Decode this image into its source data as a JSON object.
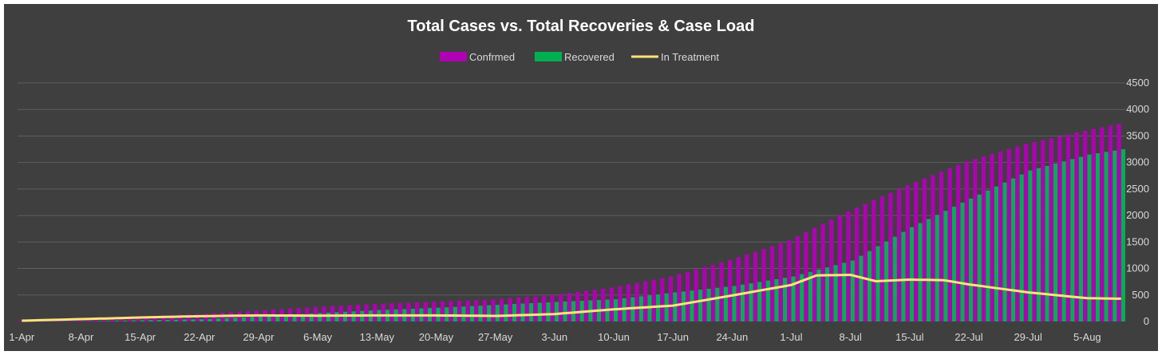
{
  "chart_data": {
    "type": "bar",
    "title": "Total Cases vs. Total Recoveries & Case Load",
    "legend_position": "top",
    "grid": true,
    "ylim": [
      0,
      4500
    ],
    "y_ticks": [
      0,
      500,
      1000,
      1500,
      2000,
      2500,
      3000,
      3500,
      4000,
      4500
    ],
    "x_tick_labels": [
      "1-Apr",
      "8-Apr",
      "15-Apr",
      "22-Apr",
      "29-Apr",
      "6-May",
      "13-May",
      "20-May",
      "27-May",
      "3-Jun",
      "10-Jun",
      "17-Jun",
      "24-Jun",
      "1-Jul",
      "8-Jul",
      "15-Jul",
      "22-Jul",
      "29-Jul",
      "5-Aug"
    ],
    "x_start_label": "1-Apr",
    "day_count": 131,
    "colors": {
      "background": "#3f3f3f",
      "grid": "#5e5e5e",
      "text": "#d9d9d9",
      "title": "#ffffff",
      "confirmed": "#b000b5",
      "recovered": "#00b050",
      "in_treatment": "#ffe37a"
    },
    "legend": [
      "Confrmed",
      "Recovered",
      "In Treatment"
    ],
    "series": [
      {
        "name": "Confrmed",
        "kind": "bar",
        "keypoints": [
          [
            0,
            15
          ],
          [
            7,
            50
          ],
          [
            14,
            95
          ],
          [
            21,
            140
          ],
          [
            28,
            205
          ],
          [
            35,
            275
          ],
          [
            42,
            330
          ],
          [
            49,
            375
          ],
          [
            56,
            415
          ],
          [
            63,
            500
          ],
          [
            70,
            640
          ],
          [
            77,
            850
          ],
          [
            84,
            1160
          ],
          [
            91,
            1530
          ],
          [
            98,
            2080
          ],
          [
            105,
            2570
          ],
          [
            112,
            3020
          ],
          [
            119,
            3350
          ],
          [
            126,
            3600
          ],
          [
            130,
            3730
          ]
        ]
      },
      {
        "name": "Recovered",
        "kind": "bar",
        "keypoints": [
          [
            0,
            0
          ],
          [
            7,
            5
          ],
          [
            14,
            25
          ],
          [
            21,
            45
          ],
          [
            28,
            95
          ],
          [
            35,
            160
          ],
          [
            42,
            215
          ],
          [
            49,
            260
          ],
          [
            56,
            315
          ],
          [
            63,
            370
          ],
          [
            70,
            420
          ],
          [
            77,
            550
          ],
          [
            84,
            670
          ],
          [
            91,
            850
          ],
          [
            98,
            1150
          ],
          [
            105,
            1780
          ],
          [
            112,
            2320
          ],
          [
            119,
            2850
          ],
          [
            126,
            3150
          ],
          [
            130,
            3250
          ]
        ]
      },
      {
        "name": "In Treatment",
        "kind": "line",
        "keypoints": [
          [
            0,
            15
          ],
          [
            7,
            45
          ],
          [
            14,
            75
          ],
          [
            21,
            100
          ],
          [
            28,
            115
          ],
          [
            35,
            110
          ],
          [
            42,
            115
          ],
          [
            49,
            115
          ],
          [
            56,
            105
          ],
          [
            63,
            140
          ],
          [
            70,
            230
          ],
          [
            77,
            300
          ],
          [
            84,
            490
          ],
          [
            91,
            690
          ],
          [
            94,
            870
          ],
          [
            98,
            880
          ],
          [
            101,
            760
          ],
          [
            105,
            790
          ],
          [
            109,
            780
          ],
          [
            112,
            700
          ],
          [
            119,
            550
          ],
          [
            126,
            440
          ],
          [
            130,
            430
          ]
        ]
      }
    ]
  }
}
